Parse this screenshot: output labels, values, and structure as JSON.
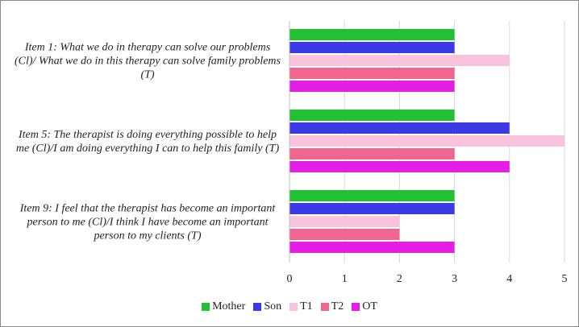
{
  "chart_data": {
    "type": "hbar",
    "categories": [
      "Item 1: What we do in therapy can solve our problems (Cl)/ What we do in this therapy can solve family problems (T)",
      "Item 5:  The therapist is doing everything possible to help me (Cl)/I am doing everything I can to help this family (T)",
      "Item 9: I feel that the therapist has become an important person to me (Cl)/I think I have become an important person to my clients (T)"
    ],
    "series": [
      {
        "name": "Mother",
        "color": "#22c033",
        "values": [
          3,
          3,
          3
        ]
      },
      {
        "name": "Son",
        "color": "#3a3ae6",
        "values": [
          3,
          4,
          3
        ]
      },
      {
        "name": "T1",
        "color": "#f9c3de",
        "values": [
          4,
          5,
          2
        ]
      },
      {
        "name": "T2",
        "color": "#f0668e",
        "values": [
          3,
          3,
          2
        ]
      },
      {
        "name": "OT",
        "color": "#e41ee4",
        "values": [
          3,
          4,
          3
        ]
      }
    ],
    "xlim": [
      0,
      5
    ],
    "xticks": [
      0,
      1,
      2,
      3,
      4,
      5
    ],
    "grid": true,
    "legend": "bottom"
  }
}
